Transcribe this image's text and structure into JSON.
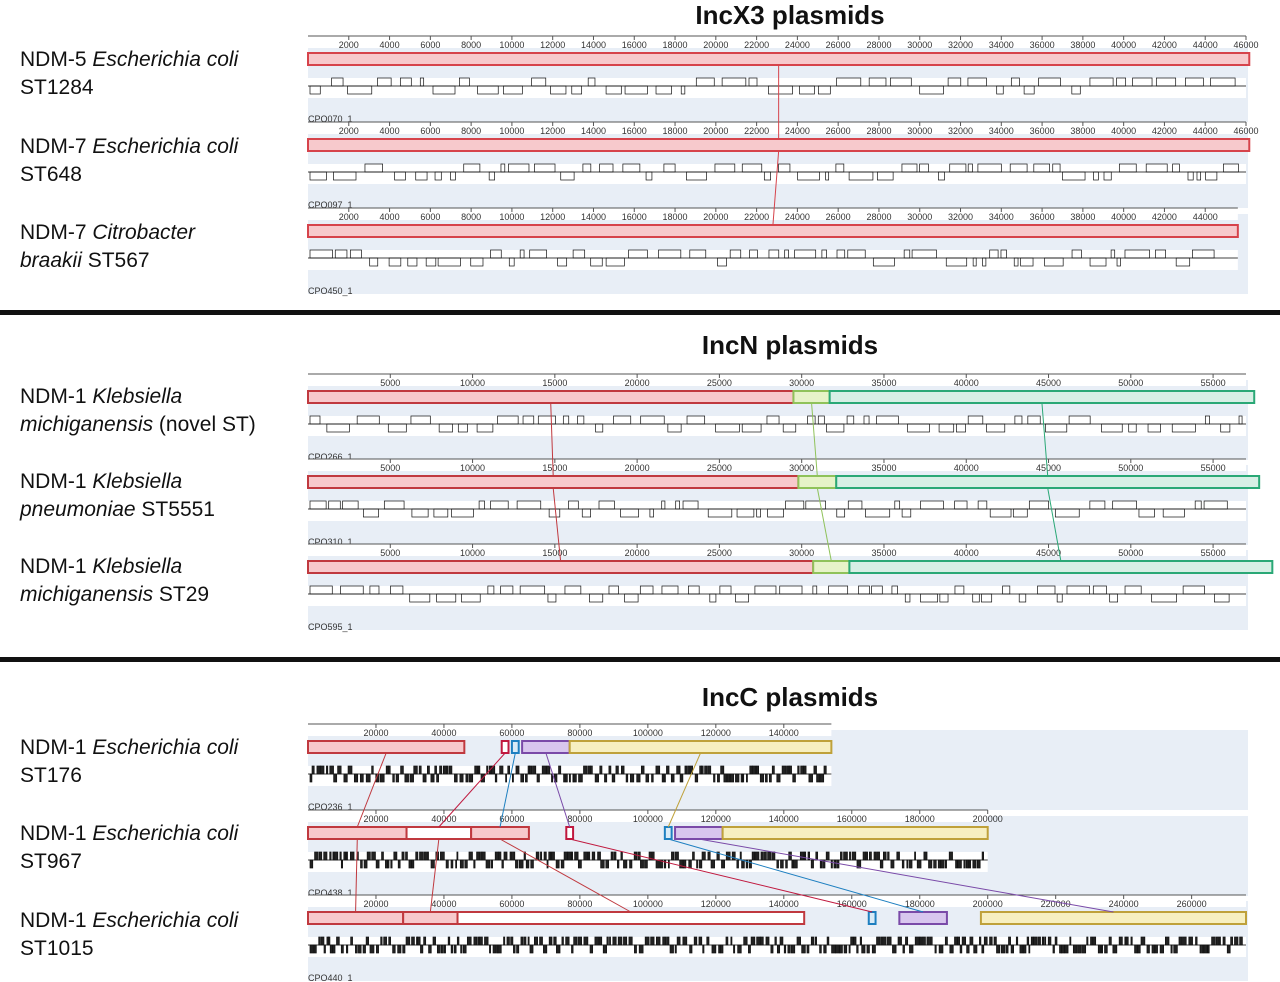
{
  "sections": [
    {
      "title": "IncX3 plasmids",
      "axis_max": 46000,
      "tick_step": 2000,
      "tracks": [
        {
          "species_prefix": "NDM-5",
          "species_italic": "Escherichia coli",
          "line2_italic": "",
          "line2_plain": "ST1284",
          "id": "CPO070_1",
          "length": 46161,
          "blocks": [
            {
              "start": 0,
              "end": 46161,
              "color": "#d6434b",
              "fill": "#f7c9cc"
            }
          ]
        },
        {
          "species_prefix": "NDM-7",
          "species_italic": "Escherichia coli",
          "line2_italic": "",
          "line2_plain": "ST648",
          "id": "CPO097_1",
          "length": 46161,
          "blocks": [
            {
              "start": 0,
              "end": 46161,
              "color": "#d6434b",
              "fill": "#f7c9cc"
            }
          ]
        },
        {
          "species_prefix": "NDM-7",
          "species_italic": "Citrobacter",
          "line2_italic": "braakii",
          "line2_plain": " ST567",
          "id": "CPO450_1",
          "length": 45600,
          "blocks": [
            {
              "start": 0,
              "end": 45600,
              "color": "#d6434b",
              "fill": "#f7c9cc"
            }
          ]
        }
      ]
    },
    {
      "title": "IncN plasmids",
      "axis_max": 57000,
      "tick_step": 5000,
      "tracks": [
        {
          "species_prefix": "NDM-1",
          "species_italic": "Klebsiella",
          "line2_italic": "michiganensis",
          "line2_plain": " (novel ST)",
          "id": "CPO266_1",
          "length": 57500,
          "blocks": [
            {
              "start": 0,
              "end": 29500,
              "color": "#c0393f",
              "fill": "#f7c9cc"
            },
            {
              "start": 29500,
              "end": 31700,
              "color": "#8fc25a",
              "fill": "#e6f3c8"
            },
            {
              "start": 31700,
              "end": 57500,
              "color": "#2aa876",
              "fill": "#d7efe5"
            }
          ]
        },
        {
          "species_prefix": "NDM-1",
          "species_italic": "Klebsiella",
          "line2_italic": "pneumoniae",
          "line2_plain": " ST5551",
          "id": "CPO310_1",
          "length": 57800,
          "blocks": [
            {
              "start": 0,
              "end": 29800,
              "color": "#c0393f",
              "fill": "#f7c9cc"
            },
            {
              "start": 29800,
              "end": 32100,
              "color": "#8fc25a",
              "fill": "#e6f3c8"
            },
            {
              "start": 32100,
              "end": 57800,
              "color": "#2aa876",
              "fill": "#d7efe5"
            }
          ]
        },
        {
          "species_prefix": "NDM-1",
          "species_italic": "Klebsiella",
          "line2_italic": "michiganensis",
          "line2_plain": " ST29",
          "id": "CPO595_1",
          "length": 58600,
          "blocks": [
            {
              "start": 0,
              "end": 30700,
              "color": "#c0393f",
              "fill": "#f7c9cc"
            },
            {
              "start": 30700,
              "end": 32900,
              "color": "#8fc25a",
              "fill": "#e6f3c8"
            },
            {
              "start": 32900,
              "end": 58600,
              "color": "#2aa876",
              "fill": "#d7efe5"
            }
          ]
        }
      ]
    },
    {
      "title": "IncC plasmids",
      "axis_max": 276000,
      "tick_step": 20000,
      "tracks": [
        {
          "species_prefix": "NDM-1",
          "species_italic": "Escherichia coli",
          "line2_italic": "",
          "line2_plain": "ST176",
          "id": "CPO236_1",
          "length": 154000,
          "blocks": [
            {
              "start": 0,
              "end": 46000,
              "color": "#c0393f",
              "fill": "#f7c9cc"
            },
            {
              "start": 57000,
              "end": 59000,
              "color": "#c0193f",
              "fill": "#ffffff"
            },
            {
              "start": 60000,
              "end": 62000,
              "color": "#1d7fc0",
              "fill": "#d9ebf7"
            },
            {
              "start": 63000,
              "end": 77000,
              "color": "#7a4aa8",
              "fill": "#d8c6ee"
            },
            {
              "start": 77000,
              "end": 154000,
              "color": "#bfa13a",
              "fill": "#f7efc0"
            }
          ]
        },
        {
          "species_prefix": "NDM-1",
          "species_italic": "Escherichia coli",
          "line2_italic": "",
          "line2_plain": "ST967",
          "id": "CPO438_1",
          "length": 200000,
          "blocks": [
            {
              "start": 0,
              "end": 29000,
              "color": "#c0393f",
              "fill": "#f7c9cc"
            },
            {
              "start": 29000,
              "end": 48000,
              "color": "#c0393f",
              "fill": "#ffffff"
            },
            {
              "start": 48000,
              "end": 65000,
              "color": "#c0393f",
              "fill": "#f7c9cc"
            },
            {
              "start": 76000,
              "end": 78000,
              "color": "#c0193f",
              "fill": "#ffffff"
            },
            {
              "start": 105000,
              "end": 107000,
              "color": "#1d7fc0",
              "fill": "#d9ebf7"
            },
            {
              "start": 108000,
              "end": 122000,
              "color": "#7a4aa8",
              "fill": "#d8c6ee"
            },
            {
              "start": 122000,
              "end": 200000,
              "color": "#bfa13a",
              "fill": "#f7efc0"
            }
          ]
        },
        {
          "species_prefix": "NDM-1",
          "species_italic": "Escherichia coli",
          "line2_italic": "",
          "line2_plain": "ST1015",
          "id": "CPO440_1",
          "length": 276000,
          "blocks": [
            {
              "start": 0,
              "end": 28000,
              "color": "#c0393f",
              "fill": "#f7c9cc"
            },
            {
              "start": 28000,
              "end": 44000,
              "color": "#c0393f",
              "fill": "#f7c9cc"
            },
            {
              "start": 44000,
              "end": 146000,
              "color": "#c0393f",
              "fill": "#ffffff"
            },
            {
              "start": 165000,
              "end": 167000,
              "color": "#1d7fc0",
              "fill": "#d9ebf7"
            },
            {
              "start": 174000,
              "end": 188000,
              "color": "#7a4aa8",
              "fill": "#d8c6ee"
            },
            {
              "start": 198000,
              "end": 276000,
              "color": "#bfa13a",
              "fill": "#f7efc0"
            }
          ]
        }
      ]
    }
  ]
}
